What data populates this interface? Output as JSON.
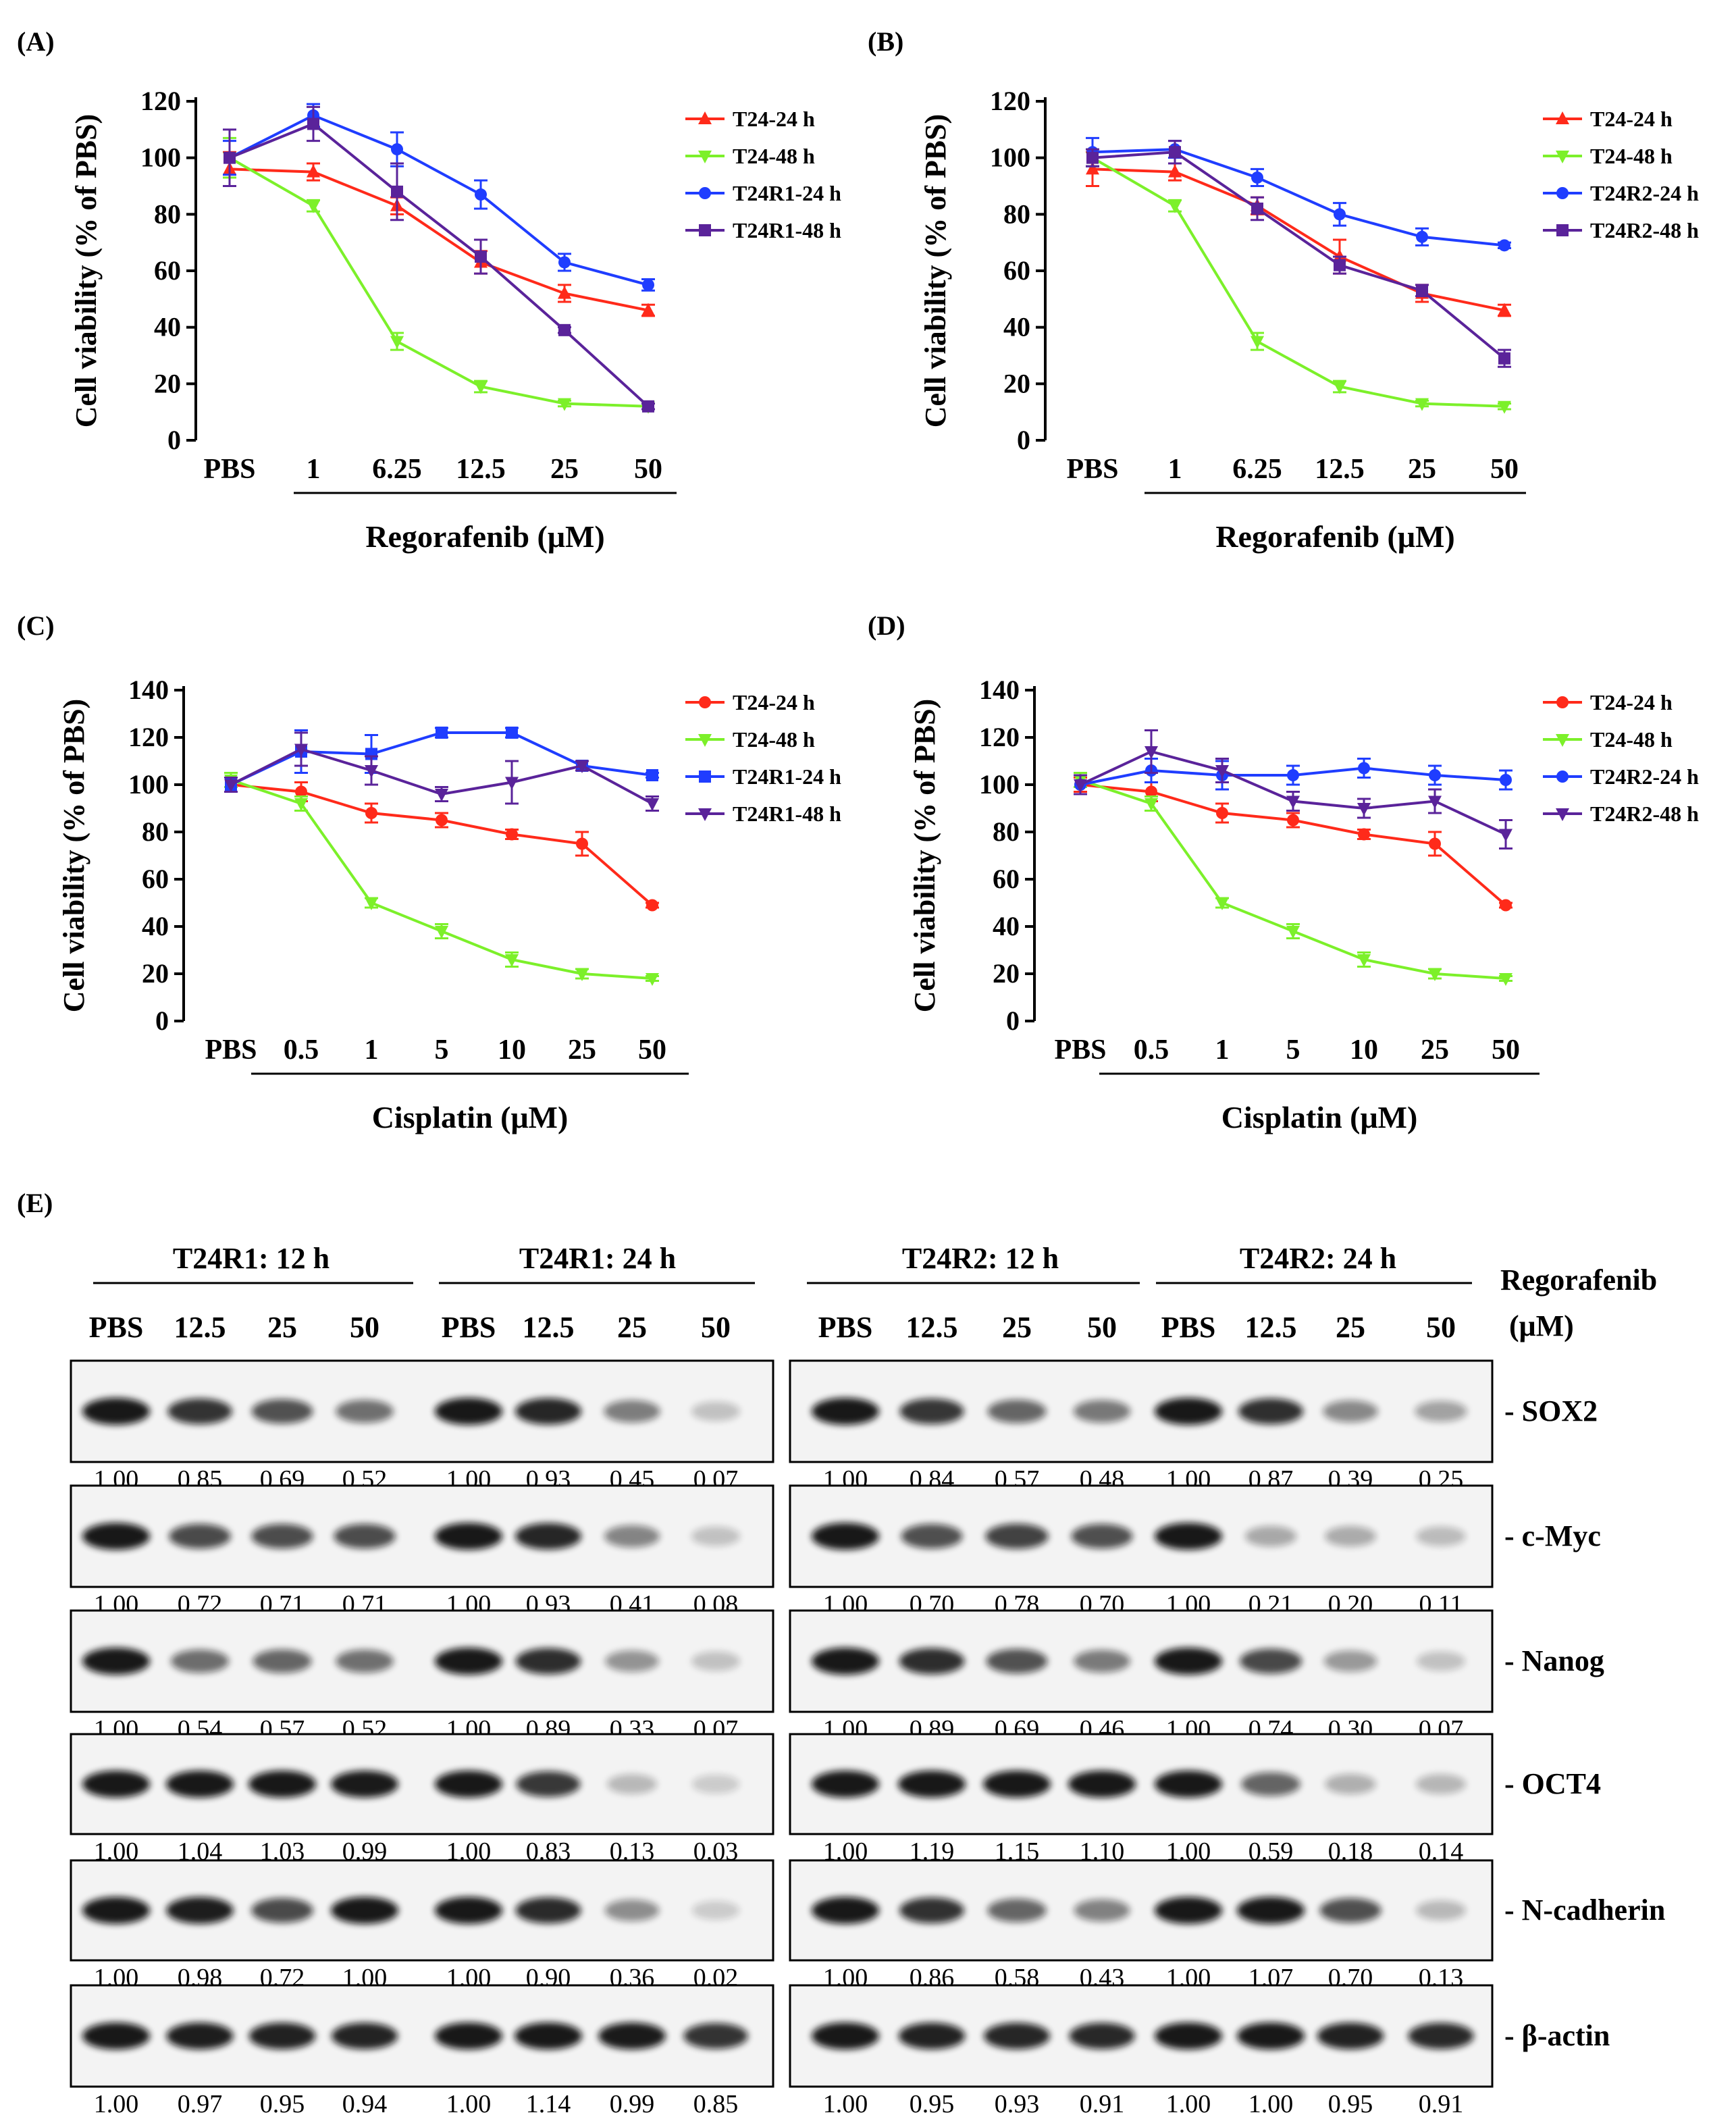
{
  "colors": {
    "red": "#ff2a1a",
    "green": "#7cf02a",
    "blue": "#1f3dff",
    "purple": "#5a239a"
  },
  "chart_data": [
    {
      "panel": "(A)",
      "type": "line",
      "categories": [
        "PBS",
        "1",
        "6.25",
        "12.5",
        "25",
        "50"
      ],
      "ylabel": "Cell viability (% of PBS)",
      "ylim": [
        0,
        120
      ],
      "yticks": [
        0,
        20,
        40,
        60,
        80,
        100,
        120
      ],
      "xlabel": "Regorafenib (μM)",
      "series": [
        {
          "name": "T24-24 h",
          "color": "red",
          "marker": "tri-up",
          "values": [
            96,
            95,
            83,
            63,
            52,
            46
          ],
          "err": [
            6,
            3,
            3,
            4,
            3,
            2
          ]
        },
        {
          "name": "T24-48 h",
          "color": "green",
          "marker": "tri-down",
          "values": [
            100,
            83,
            35,
            19,
            13,
            12
          ],
          "err": [
            7,
            2,
            3,
            2,
            1,
            1
          ]
        },
        {
          "name": "T24R1-24 h",
          "color": "blue",
          "marker": "circle",
          "values": [
            100,
            115,
            103,
            87,
            63,
            55
          ],
          "err": [
            6,
            4,
            6,
            5,
            3,
            2
          ]
        },
        {
          "name": "T24R1-48 h",
          "color": "purple",
          "marker": "square",
          "values": [
            100,
            112,
            88,
            65,
            39,
            12
          ],
          "err": [
            10,
            6,
            10,
            6,
            1,
            1
          ]
        }
      ]
    },
    {
      "panel": "(B)",
      "type": "line",
      "categories": [
        "PBS",
        "1",
        "6.25",
        "12.5",
        "25",
        "50"
      ],
      "ylabel": "Cell viability (% of PBS)",
      "ylim": [
        0,
        120
      ],
      "yticks": [
        0,
        20,
        40,
        60,
        80,
        100,
        120
      ],
      "xlabel": "Regorafenib (μM)",
      "series": [
        {
          "name": "T24-24 h",
          "color": "red",
          "marker": "tri-up",
          "values": [
            96,
            95,
            83,
            65,
            52,
            46
          ],
          "err": [
            6,
            3,
            3,
            6,
            3,
            2
          ]
        },
        {
          "name": "T24-48 h",
          "color": "green",
          "marker": "tri-down",
          "values": [
            100,
            83,
            35,
            19,
            13,
            12
          ],
          "err": [
            3,
            2,
            3,
            2,
            1,
            1
          ]
        },
        {
          "name": "T24R2-24 h",
          "color": "blue",
          "marker": "circle",
          "values": [
            102,
            103,
            93,
            80,
            72,
            69
          ],
          "err": [
            5,
            3,
            3,
            4,
            3,
            1
          ]
        },
        {
          "name": "T24R2-48 h",
          "color": "purple",
          "marker": "square",
          "values": [
            100,
            102,
            82,
            62,
            53,
            29
          ],
          "err": [
            3,
            4,
            4,
            3,
            2,
            3
          ]
        }
      ]
    },
    {
      "panel": "(C)",
      "type": "line",
      "categories": [
        "PBS",
        "0.5",
        "1",
        "5",
        "10",
        "25",
        "50"
      ],
      "ylabel": "Cell viability (% of PBS)",
      "ylim": [
        0,
        140
      ],
      "yticks": [
        0,
        20,
        40,
        60,
        80,
        100,
        120,
        140
      ],
      "xlabel": "Cisplatin (μM)",
      "series": [
        {
          "name": "T24-24 h",
          "color": "red",
          "marker": "circle",
          "values": [
            100,
            97,
            88,
            85,
            79,
            75,
            49
          ],
          "err": [
            3,
            4,
            4,
            3,
            2,
            5,
            1
          ]
        },
        {
          "name": "T24-48 h",
          "color": "green",
          "marker": "tri-down",
          "values": [
            102,
            92,
            50,
            38,
            26,
            20,
            18
          ],
          "err": [
            3,
            3,
            2,
            3,
            3,
            2,
            1
          ]
        },
        {
          "name": "T24R1-24 h",
          "color": "blue",
          "marker": "square",
          "values": [
            100,
            114,
            113,
            122,
            122,
            108,
            104
          ],
          "err": [
            3,
            9,
            8,
            2,
            2,
            2,
            1
          ]
        },
        {
          "name": "T24R1-48 h",
          "color": "purple",
          "marker": "tri-down",
          "values": [
            100,
            115,
            106,
            96,
            101,
            108,
            92
          ],
          "err": [
            3,
            7,
            6,
            3,
            9,
            2,
            3
          ]
        }
      ]
    },
    {
      "panel": "(D)",
      "type": "line",
      "categories": [
        "PBS",
        "0.5",
        "1",
        "5",
        "10",
        "25",
        "50"
      ],
      "ylabel": "Cell viability (% of PBS)",
      "ylim": [
        0,
        140
      ],
      "yticks": [
        0,
        20,
        40,
        60,
        80,
        100,
        120,
        140
      ],
      "xlabel": "Cisplatin (μM)",
      "series": [
        {
          "name": "T24-24 h",
          "color": "red",
          "marker": "circle",
          "values": [
            100,
            97,
            88,
            85,
            79,
            75,
            49
          ],
          "err": [
            3,
            4,
            4,
            3,
            2,
            5,
            1
          ]
        },
        {
          "name": "T24-48 h",
          "color": "green",
          "marker": "tri-down",
          "values": [
            102,
            92,
            50,
            38,
            26,
            20,
            18
          ],
          "err": [
            3,
            3,
            2,
            3,
            3,
            2,
            1
          ]
        },
        {
          "name": "T24R2-24 h",
          "color": "blue",
          "marker": "circle",
          "values": [
            100,
            106,
            104,
            104,
            107,
            104,
            102
          ],
          "err": [
            4,
            5,
            6,
            4,
            4,
            4,
            4
          ]
        },
        {
          "name": "T24R2-48 h",
          "color": "purple",
          "marker": "tri-down",
          "values": [
            100,
            114,
            106,
            93,
            90,
            93,
            79
          ],
          "err": [
            4,
            9,
            5,
            4,
            4,
            5,
            6
          ]
        }
      ]
    }
  ],
  "western": {
    "panel": "(E)",
    "regorafenib_label": "Regorafenib",
    "unit_label": "(μM)",
    "left_groups": [
      "T24R1: 12 h",
      "T24R1: 24 h"
    ],
    "right_groups": [
      "T24R2: 12 h",
      "T24R2: 24 h"
    ],
    "lanes": [
      "PBS",
      "12.5",
      "25",
      "50",
      "PBS",
      "12.5",
      "25",
      "50"
    ],
    "blots": [
      {
        "label": "- SOX2",
        "left": [
          "1.00",
          "0.85",
          "0.69",
          "0.52",
          "1.00",
          "0.93",
          "0.45",
          "0.07"
        ],
        "right": [
          "1.00",
          "0.84",
          "0.57",
          "0.48",
          "1.00",
          "0.87",
          "0.39",
          "0.25"
        ]
      },
      {
        "label": "- c-Myc",
        "left": [
          "1.00",
          "0.72",
          "0.71",
          "0.71",
          "1.00",
          "0.93",
          "0.41",
          "0.08"
        ],
        "right": [
          "1.00",
          "0.70",
          "0.78",
          "0.70",
          "1.00",
          "0.21",
          "0.20",
          "0.11"
        ]
      },
      {
        "label": "- Nanog",
        "left": [
          "1.00",
          "0.54",
          "0.57",
          "0.52",
          "1.00",
          "0.89",
          "0.33",
          "0.07"
        ],
        "right": [
          "1.00",
          "0.89",
          "0.69",
          "0.46",
          "1.00",
          "0.74",
          "0.30",
          "0.07"
        ]
      },
      {
        "label": "- OCT4",
        "left": [
          "1.00",
          "1.04",
          "1.03",
          "0.99",
          "1.00",
          "0.83",
          "0.13",
          "0.03"
        ],
        "right": [
          "1.00",
          "1.19",
          "1.15",
          "1.10",
          "1.00",
          "0.59",
          "0.18",
          "0.14"
        ]
      },
      {
        "label": "- N-cadherin",
        "left": [
          "1.00",
          "0.98",
          "0.72",
          "1.00",
          "1.00",
          "0.90",
          "0.36",
          "0.02"
        ],
        "right": [
          "1.00",
          "0.86",
          "0.58",
          "0.43",
          "1.00",
          "1.07",
          "0.70",
          "0.13"
        ]
      },
      {
        "label": "- β-actin",
        "left": [
          "1.00",
          "0.97",
          "0.95",
          "0.94",
          "1.00",
          "1.14",
          "0.99",
          "0.85"
        ],
        "right": [
          "1.00",
          "0.95",
          "0.93",
          "0.91",
          "1.00",
          "1.00",
          "0.95",
          "0.91"
        ]
      }
    ]
  }
}
